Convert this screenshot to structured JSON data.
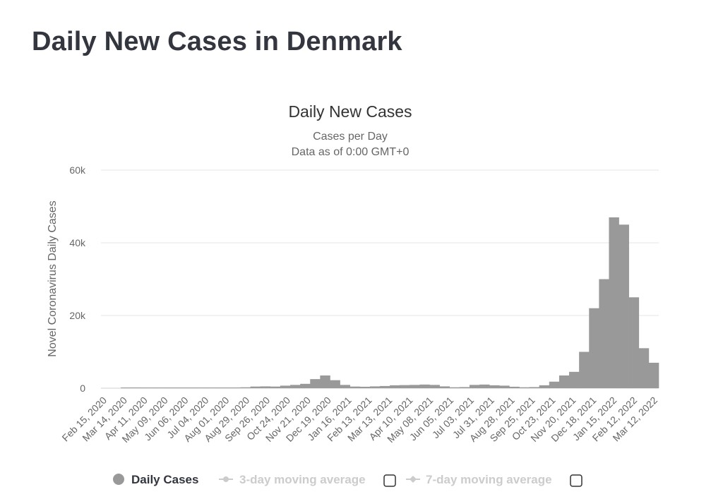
{
  "page": {
    "title": "Daily New Cases in Denmark"
  },
  "chart_data": {
    "type": "bar",
    "title": "Daily New Cases",
    "subtitle": "Cases per Day",
    "subtitle2": "Data as of 0:00 GMT+0",
    "xlabel": "",
    "ylabel": "Novel Coronavirus Daily Cases",
    "ylim": [
      0,
      60000
    ],
    "yticks": [
      {
        "value": 0,
        "label": "0"
      },
      {
        "value": 20000,
        "label": "20k"
      },
      {
        "value": 40000,
        "label": "40k"
      },
      {
        "value": 60000,
        "label": "60k"
      }
    ],
    "x_tick_labels": [
      "Feb 15, 2020",
      "Mar 14, 2020",
      "Apr 11, 2020",
      "May 09, 2020",
      "Jun 06, 2020",
      "Jul 04, 2020",
      "Aug 01, 2020",
      "Aug 29, 2020",
      "Sep 26, 2020",
      "Oct 24, 2020",
      "Nov 21, 2020",
      "Dec 19, 2020",
      "Jan 16, 2021",
      "Feb 13, 2021",
      "Mar 13, 2021",
      "Apr 10, 2021",
      "May 08, 2021",
      "Jun 05, 2021",
      "Jul 03, 2021",
      "Jul 31, 2021",
      "Aug 28, 2021",
      "Sep 25, 2021",
      "Oct 23, 2021",
      "Nov 20, 2021",
      "Dec 18, 2021",
      "Jan 15, 2022",
      "Feb 12, 2022",
      "Mar 12, 2022"
    ],
    "categories": [
      "Feb 15, 2020",
      "Feb 29, 2020",
      "Mar 14, 2020",
      "Mar 28, 2020",
      "Apr 11, 2020",
      "Apr 25, 2020",
      "May 09, 2020",
      "May 23, 2020",
      "Jun 06, 2020",
      "Jun 20, 2020",
      "Jul 04, 2020",
      "Jul 18, 2020",
      "Aug 01, 2020",
      "Aug 15, 2020",
      "Aug 29, 2020",
      "Sep 12, 2020",
      "Sep 26, 2020",
      "Oct 10, 2020",
      "Oct 24, 2020",
      "Nov 07, 2020",
      "Nov 21, 2020",
      "Dec 05, 2020",
      "Dec 19, 2020",
      "Jan 02, 2021",
      "Jan 16, 2021",
      "Jan 30, 2021",
      "Feb 13, 2021",
      "Feb 27, 2021",
      "Mar 13, 2021",
      "Mar 27, 2021",
      "Apr 10, 2021",
      "Apr 24, 2021",
      "May 08, 2021",
      "May 22, 2021",
      "Jun 05, 2021",
      "Jun 19, 2021",
      "Jul 03, 2021",
      "Jul 17, 2021",
      "Jul 31, 2021",
      "Aug 14, 2021",
      "Aug 28, 2021",
      "Sep 11, 2021",
      "Sep 25, 2021",
      "Oct 09, 2021",
      "Oct 23, 2021",
      "Nov 06, 2021",
      "Nov 20, 2021",
      "Dec 04, 2021",
      "Dec 18, 2021",
      "Jan 01, 2022",
      "Jan 15, 2022",
      "Jan 29, 2022",
      "Feb 12, 2022",
      "Feb 26, 2022",
      "Mar 12, 2022",
      "Mar 26, 2022"
    ],
    "series": [
      {
        "name": "Daily Cases",
        "color": "#999999",
        "values": [
          0,
          0,
          150,
          200,
          150,
          120,
          80,
          40,
          30,
          40,
          20,
          60,
          80,
          150,
          250,
          450,
          500,
          450,
          700,
          900,
          1200,
          2500,
          3500,
          2200,
          900,
          450,
          400,
          500,
          600,
          800,
          850,
          900,
          1000,
          900,
          500,
          250,
          300,
          900,
          1000,
          800,
          700,
          400,
          250,
          300,
          800,
          1800,
          3500,
          4500,
          10000,
          22000,
          30000,
          47000,
          45000,
          25000,
          11000,
          7000
        ]
      }
    ]
  },
  "legend": {
    "daily_cases": "Daily Cases",
    "three_day": "3-day moving average",
    "seven_day": "7-day moving average"
  },
  "colors": {
    "bar": "#999999",
    "text": "#33353f",
    "grid": "#e6e6e6",
    "legend_inactive": "#cccccc"
  }
}
